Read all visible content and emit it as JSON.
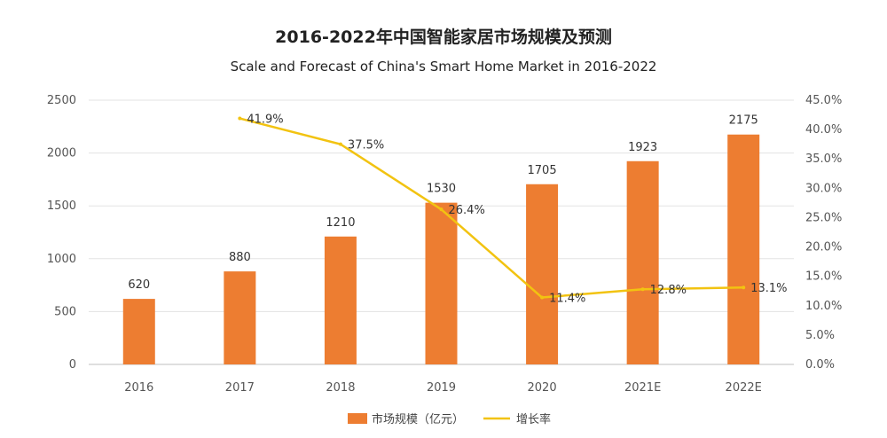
{
  "chart_data": {
    "type": "bar",
    "title": "2016-2022年中国智能家居市场规模及预测",
    "subtitle": "Scale and Forecast of China's Smart Home Market in 2016-2022",
    "categories": [
      "2016",
      "2017",
      "2018",
      "2019",
      "2020",
      "2021E",
      "2022E"
    ],
    "series": [
      {
        "name": "市场规模（亿元）",
        "type": "bar",
        "axis": "left",
        "color": "#ed7d31",
        "values": [
          620,
          880,
          1210,
          1530,
          1705,
          1923,
          2175
        ],
        "labels": [
          "620",
          "880",
          "1210",
          "1530",
          "1705",
          "1923",
          "2175"
        ]
      },
      {
        "name": "增长率",
        "type": "line",
        "axis": "right",
        "color": "#f2c311",
        "values": [
          null,
          41.9,
          37.5,
          26.4,
          11.4,
          12.8,
          13.1
        ],
        "labels": [
          null,
          "41.9%",
          "37.5%",
          "26.4%",
          "11.4%",
          "12.8%",
          "13.1%"
        ]
      }
    ],
    "y_left": {
      "min": 0,
      "max": 2500,
      "ticks": [
        "0",
        "500",
        "1000",
        "1500",
        "2000",
        "2500"
      ]
    },
    "y_right": {
      "min": 0,
      "max": 45,
      "ticks": [
        "0.0%",
        "5.0%",
        "10.0%",
        "15.0%",
        "20.0%",
        "25.0%",
        "30.0%",
        "35.0%",
        "40.0%",
        "45.0%"
      ]
    },
    "grid": true,
    "legend_position": "bottom-center"
  }
}
